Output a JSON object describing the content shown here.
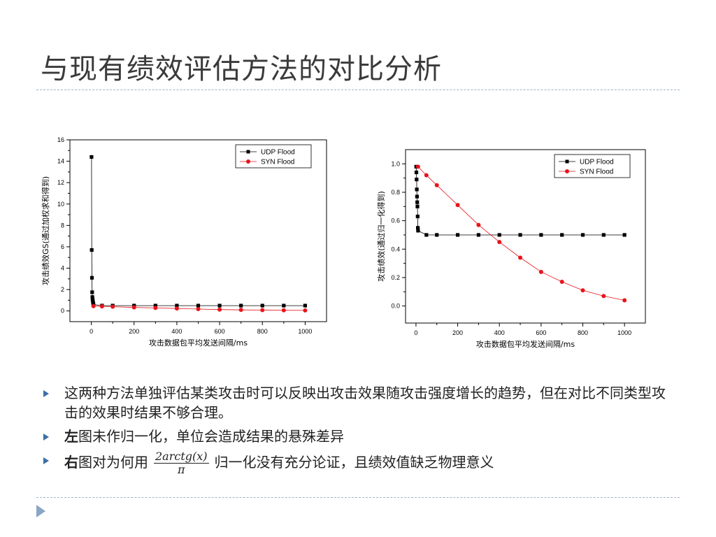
{
  "slide": {
    "title": "与现有绩效评估方法的对比分析",
    "bullets": [
      {
        "bold": "",
        "text": "这两种方法单独评估某类攻击时可以反映出攻击效果随攻击强度增长的趋势，但在对比不同类型攻击的效果时结果不够合理。"
      },
      {
        "bold": "左",
        "text": "图未作归一化，单位会造成结果的悬殊差异"
      },
      {
        "bold": "右",
        "pre": "图对为何用",
        "frac_num": "2arctg(x)",
        "frac_den": "π",
        "post": "归一化没有充分论证，且绩效值缺乏物理意义"
      }
    ]
  },
  "chart_data": [
    {
      "type": "line",
      "xlabel": "攻击数据包平均发送间隔/ms",
      "ylabel": "攻击绩效GS(通过加权求和得到)",
      "xlim": [
        -100,
        1100
      ],
      "ylim": [
        -1,
        16
      ],
      "xticks": [
        0,
        200,
        400,
        600,
        800,
        1000
      ],
      "yticks": [
        0,
        2,
        4,
        6,
        8,
        10,
        12,
        14,
        16
      ],
      "legend": "top-right",
      "series": [
        {
          "name": "UDP Flood",
          "color": "#000000",
          "marker": "square",
          "x": [
            1,
            2,
            3,
            4,
            5,
            6,
            7,
            8,
            9,
            10,
            50,
            100,
            200,
            300,
            400,
            500,
            600,
            700,
            800,
            900,
            1000
          ],
          "y": [
            14.4,
            5.7,
            3.1,
            1.75,
            1.3,
            1.1,
            0.95,
            0.8,
            0.7,
            0.6,
            0.5,
            0.5,
            0.5,
            0.5,
            0.5,
            0.5,
            0.5,
            0.5,
            0.5,
            0.5,
            0.5
          ]
        },
        {
          "name": "SYN Flood",
          "color": "#e8141c",
          "marker": "circle",
          "x": [
            10,
            50,
            100,
            200,
            300,
            400,
            500,
            600,
            700,
            800,
            900,
            1000
          ],
          "y": [
            0.45,
            0.43,
            0.4,
            0.33,
            0.28,
            0.23,
            0.18,
            0.13,
            0.1,
            0.08,
            0.06,
            0.05
          ]
        }
      ]
    },
    {
      "type": "line",
      "xlabel": "攻击数据包平均发送间隔/ms",
      "ylabel": "攻击绩效(通过归一化得到)",
      "xlim": [
        -50,
        1100
      ],
      "ylim": [
        -0.12,
        1.1
      ],
      "xticks": [
        0,
        200,
        400,
        600,
        800,
        1000
      ],
      "yticks": [
        0.0,
        0.2,
        0.4,
        0.6,
        0.8,
        1.0
      ],
      "legend": "top-right",
      "series": [
        {
          "name": "UDP Flood",
          "color": "#000000",
          "marker": "square",
          "x": [
            1,
            2,
            3,
            4,
            5,
            6,
            7,
            8,
            9,
            10,
            50,
            100,
            200,
            300,
            400,
            500,
            600,
            700,
            800,
            900,
            1000
          ],
          "y": [
            0.98,
            0.94,
            0.89,
            0.82,
            0.77,
            0.73,
            0.7,
            0.63,
            0.55,
            0.53,
            0.5,
            0.5,
            0.5,
            0.5,
            0.5,
            0.5,
            0.5,
            0.5,
            0.5,
            0.5,
            0.5
          ]
        },
        {
          "name": "SYN Flood",
          "color": "#e8141c",
          "marker": "circle",
          "x": [
            10,
            50,
            100,
            200,
            300,
            400,
            500,
            600,
            700,
            800,
            900,
            1000
          ],
          "y": [
            0.98,
            0.92,
            0.85,
            0.71,
            0.57,
            0.45,
            0.34,
            0.24,
            0.17,
            0.11,
            0.07,
            0.04
          ]
        }
      ]
    }
  ]
}
